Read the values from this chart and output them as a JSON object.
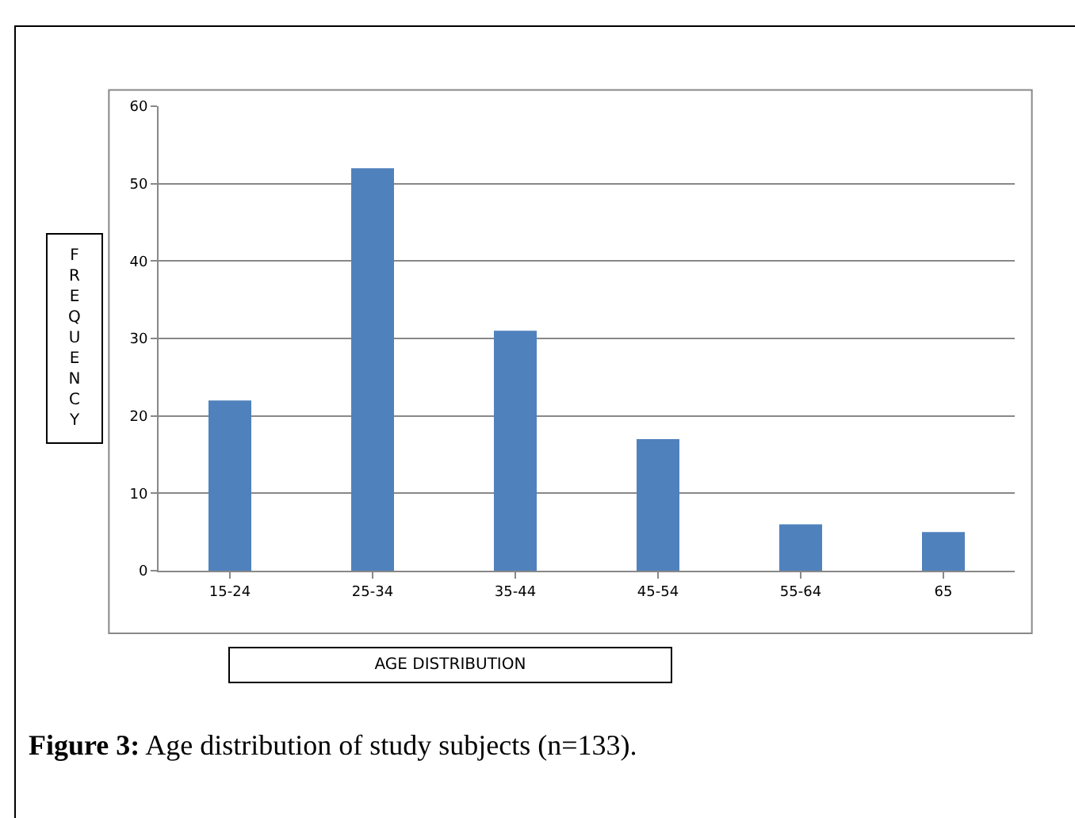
{
  "chart_data": {
    "type": "bar",
    "categories": [
      "15-24",
      "25-34",
      "35-44",
      "45-54",
      "55-64",
      "65"
    ],
    "values": [
      22,
      52,
      31,
      17,
      6,
      5
    ],
    "color": "#4f81bd",
    "ylim": [
      0,
      60
    ],
    "yticks": [
      0,
      10,
      20,
      30,
      40,
      50,
      60
    ],
    "grid": "y",
    "ylabel": "FREQUENCY",
    "xlabel": "AGE DISTRIBUTION",
    "annotations": [
      "Figure 3: Age distribution of study subjects (n=133)."
    ]
  }
}
